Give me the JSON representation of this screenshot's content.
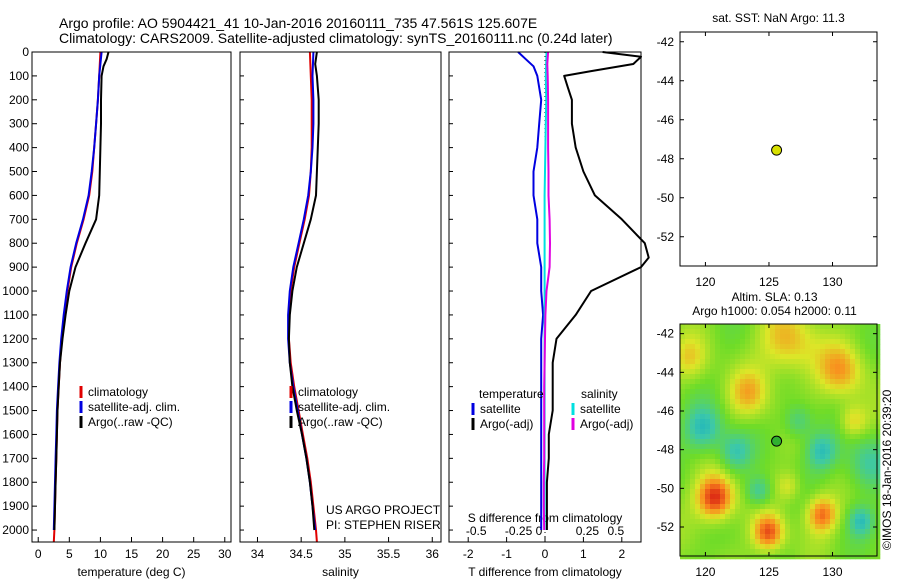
{
  "header": {
    "line1": "Argo profile: AO 5904421_41 10-Jan-2016 20160111_735 47.561S 125.607E",
    "line2": "Climatology: CARS2009. Satellite-adjusted climatology: synTS_20160111.nc (0.24d later)"
  },
  "colors": {
    "climatology": "#e00000",
    "satellite": "#0000e0",
    "argo": "#000000",
    "sal_satellite": "#00e0e0",
    "sal_argo": "#e000e0",
    "marker": "#d8e000",
    "marker_map": "#30b030"
  },
  "chart_data": [
    {
      "type": "line",
      "name": "temperature-profile",
      "xlabel": "temperature (deg C)",
      "xlim": [
        -1,
        31
      ],
      "ylim": [
        2050,
        0
      ],
      "xticks": [
        0,
        5,
        10,
        15,
        20,
        25,
        30
      ],
      "yticks": [
        0,
        100,
        200,
        300,
        400,
        500,
        600,
        700,
        800,
        900,
        1000,
        1100,
        1200,
        1300,
        1400,
        1500,
        1600,
        1700,
        1800,
        1900,
        2000
      ],
      "legend": [
        "climatology",
        "satellite-adj. clim.",
        "Argo(..raw -QC)"
      ],
      "series": [
        {
          "name": "climatology",
          "color": "#e00000",
          "y": [
            0,
            50,
            100,
            200,
            300,
            400,
            500,
            600,
            700,
            800,
            900,
            1000,
            1100,
            1200,
            1300,
            1400,
            1500,
            1600,
            1700,
            1800,
            1900,
            2000,
            2050
          ],
          "x": [
            10.0,
            9.9,
            9.8,
            9.6,
            9.3,
            9.0,
            8.7,
            8.2,
            7.3,
            6.2,
            5.3,
            4.7,
            4.2,
            3.8,
            3.5,
            3.3,
            3.1,
            3.0,
            2.9,
            2.8,
            2.7,
            2.6,
            2.5
          ]
        },
        {
          "name": "satellite-adj. clim.",
          "color": "#0000e0",
          "y": [
            0,
            50,
            100,
            200,
            300,
            400,
            500,
            600,
            700,
            800,
            900,
            1000,
            1100,
            1200,
            1300,
            1400,
            1500,
            1600,
            1700,
            1800,
            1900,
            2000
          ],
          "x": [
            10.2,
            10.0,
            9.8,
            9.6,
            9.3,
            9.0,
            8.6,
            8.1,
            7.2,
            6.1,
            5.2,
            4.6,
            4.1,
            3.7,
            3.4,
            3.2,
            3.0,
            2.9,
            2.8,
            2.7,
            2.6,
            2.5
          ]
        },
        {
          "name": "Argo(..raw -QC)",
          "color": "#000000",
          "y": [
            0,
            30,
            60,
            100,
            200,
            300,
            400,
            500,
            600,
            700,
            800,
            900,
            1000,
            1100,
            1200,
            1300,
            1400,
            1500,
            1600,
            1700,
            1800,
            1900,
            2000
          ],
          "x": [
            11.3,
            11.0,
            10.5,
            10.2,
            10.1,
            10.1,
            10.0,
            9.9,
            9.8,
            9.3,
            7.6,
            6.0,
            5.0,
            4.4,
            3.9,
            3.5,
            3.3,
            3.1,
            3.0,
            2.9,
            2.8,
            2.7,
            2.6
          ]
        }
      ]
    },
    {
      "type": "line",
      "name": "salinity-profile",
      "xlabel": "salinity",
      "xlim": [
        33.8,
        36.1
      ],
      "ylim": [
        2050,
        0
      ],
      "xticks": [
        34,
        34.5,
        35,
        35.5,
        36
      ],
      "legend": [
        "climatology",
        "satellite-adj. clim.",
        "Argo(..raw -QC)"
      ],
      "annotation": [
        "US ARGO PROJECT",
        "PI: STEPHEN RISER"
      ],
      "series": [
        {
          "name": "climatology",
          "color": "#e00000",
          "y": [
            0,
            100,
            200,
            300,
            400,
            500,
            600,
            700,
            800,
            900,
            1000,
            1100,
            1200,
            1300,
            1400,
            1500,
            1600,
            1700,
            1800,
            1900,
            2000,
            2050
          ],
          "x": [
            34.6,
            34.61,
            34.62,
            34.62,
            34.62,
            34.61,
            34.59,
            34.54,
            34.48,
            34.42,
            34.38,
            34.36,
            34.36,
            34.38,
            34.42,
            34.47,
            34.52,
            34.57,
            34.61,
            34.64,
            34.67,
            34.68
          ]
        },
        {
          "name": "satellite-adj. clim.",
          "color": "#0000e0",
          "y": [
            0,
            100,
            200,
            300,
            400,
            500,
            600,
            700,
            800,
            900,
            1000,
            1100,
            1200,
            1300,
            1400,
            1500,
            1600,
            1700,
            1800,
            1900,
            2000
          ],
          "x": [
            34.64,
            34.63,
            34.64,
            34.64,
            34.63,
            34.61,
            34.58,
            34.53,
            34.47,
            34.41,
            34.37,
            34.35,
            34.35,
            34.37,
            34.41,
            34.46,
            34.51,
            34.56,
            34.6,
            34.63,
            34.66
          ]
        },
        {
          "name": "Argo(..raw -QC)",
          "color": "#000000",
          "y": [
            0,
            50,
            100,
            200,
            300,
            400,
            500,
            600,
            700,
            800,
            900,
            1000,
            1100,
            1200,
            1300,
            1400,
            1500,
            1600,
            1700,
            1800,
            1900,
            2000
          ],
          "x": [
            34.68,
            34.66,
            34.68,
            34.7,
            34.7,
            34.69,
            34.68,
            34.67,
            34.61,
            34.53,
            34.45,
            34.4,
            34.37,
            34.36,
            34.37,
            34.4,
            34.45,
            34.51,
            34.56,
            34.6,
            34.63,
            34.65
          ]
        }
      ]
    },
    {
      "type": "line",
      "name": "difference-profile",
      "xlabel": "T difference from climatology",
      "xlabel_top": "S difference from climatology",
      "xlim": [
        -2.5,
        2.5
      ],
      "ylim": [
        2050,
        0
      ],
      "xticks": [
        -2,
        -1,
        0,
        1,
        2
      ],
      "xticks_top": [
        "-0.5",
        "-0.25",
        "0",
        "0.25",
        "0.5"
      ],
      "legend_left_title": "temperature",
      "legend_right_title": "salinity",
      "legend_left": [
        "satellite",
        "Argo(-adj)"
      ],
      "legend_right": [
        "satellite",
        "Argo(-adj)"
      ],
      "series": [
        {
          "name": "T satellite",
          "color": "#0000e0",
          "y": [
            0,
            30,
            60,
            100,
            200,
            300,
            400,
            500,
            600,
            700,
            800,
            900,
            1000,
            1100,
            1200,
            1300,
            1400,
            1500,
            1600,
            1700,
            1800,
            1900,
            2000
          ],
          "x": [
            -0.7,
            -0.5,
            -0.3,
            -0.2,
            -0.1,
            -0.15,
            -0.2,
            -0.3,
            -0.3,
            -0.2,
            -0.2,
            -0.1,
            -0.1,
            -0.05,
            -0.1,
            -0.1,
            -0.1,
            -0.1,
            -0.1,
            -0.1,
            -0.1,
            -0.1,
            -0.1
          ]
        },
        {
          "name": "T Argo(-adj)",
          "color": "#000000",
          "y": [
            0,
            20,
            50,
            80,
            100,
            150,
            200,
            300,
            400,
            500,
            600,
            700,
            800,
            860,
            900,
            1000,
            1100,
            1200,
            1300,
            1400,
            1500,
            1600,
            1700,
            1800,
            1900,
            2000
          ],
          "x": [
            1.5,
            2.5,
            2.3,
            1.2,
            0.5,
            0.6,
            0.7,
            0.7,
            0.8,
            1.0,
            1.3,
            2.0,
            2.6,
            2.7,
            2.5,
            1.2,
            0.8,
            0.3,
            0.2,
            0.2,
            0.2,
            0.1,
            0.1,
            0.05,
            0.05,
            0.05
          ]
        },
        {
          "name": "S satellite",
          "color": "#00e0e0",
          "y": [
            0,
            100,
            200,
            300,
            400,
            500,
            600,
            700,
            800,
            900,
            1000,
            1100,
            1200,
            1300,
            1400,
            1500,
            1600,
            1700,
            1800,
            1900,
            2000
          ],
          "x": [
            0.04,
            0.02,
            0.03,
            0.02,
            0.01,
            0.0,
            -0.01,
            -0.01,
            -0.01,
            -0.01,
            -0.01,
            -0.01,
            -0.01,
            -0.01,
            -0.01,
            -0.01,
            -0.01,
            -0.01,
            -0.01,
            -0.01,
            -0.01
          ]
        },
        {
          "name": "S Argo(-adj)",
          "color": "#e000e0",
          "y": [
            0,
            50,
            100,
            200,
            300,
            400,
            500,
            600,
            700,
            800,
            900,
            1000,
            1100,
            1200,
            1300,
            1400,
            1500,
            1600,
            1700,
            1800,
            1900,
            2000
          ],
          "x": [
            0.08,
            0.06,
            0.07,
            0.08,
            0.08,
            0.08,
            0.09,
            0.09,
            0.12,
            0.13,
            0.12,
            0.04,
            0.01,
            0.0,
            -0.01,
            -0.02,
            -0.02,
            -0.02,
            -0.02,
            -0.03,
            -0.03,
            -0.02
          ]
        }
      ]
    },
    {
      "type": "scatter",
      "name": "sst-map",
      "title": "sat. SST: NaN Argo: 11.3",
      "xlim": [
        118,
        133.5
      ],
      "ylim": [
        -53.5,
        -41.5
      ],
      "xticks": [
        120,
        125,
        130
      ],
      "yticks": [
        -42,
        -44,
        -46,
        -48,
        -50,
        -52
      ],
      "points": [
        {
          "x": 125.6,
          "y": -47.56
        }
      ]
    },
    {
      "type": "heatmap",
      "name": "sla-map",
      "title_line1": "Altim. SLA: 0.13",
      "title_line2": "Argo h1000: 0.054 h2000: 0.11",
      "xlim": [
        118,
        133.5
      ],
      "ylim": [
        -53.5,
        -41.5
      ],
      "xticks": [
        120,
        125,
        130
      ],
      "yticks": [
        -42,
        -44,
        -46,
        -48,
        -50,
        -52
      ],
      "points": [
        {
          "x": 125.6,
          "y": -47.56
        }
      ]
    }
  ],
  "stamp": "©IMOS 18-Jan-2016 20:39:20"
}
